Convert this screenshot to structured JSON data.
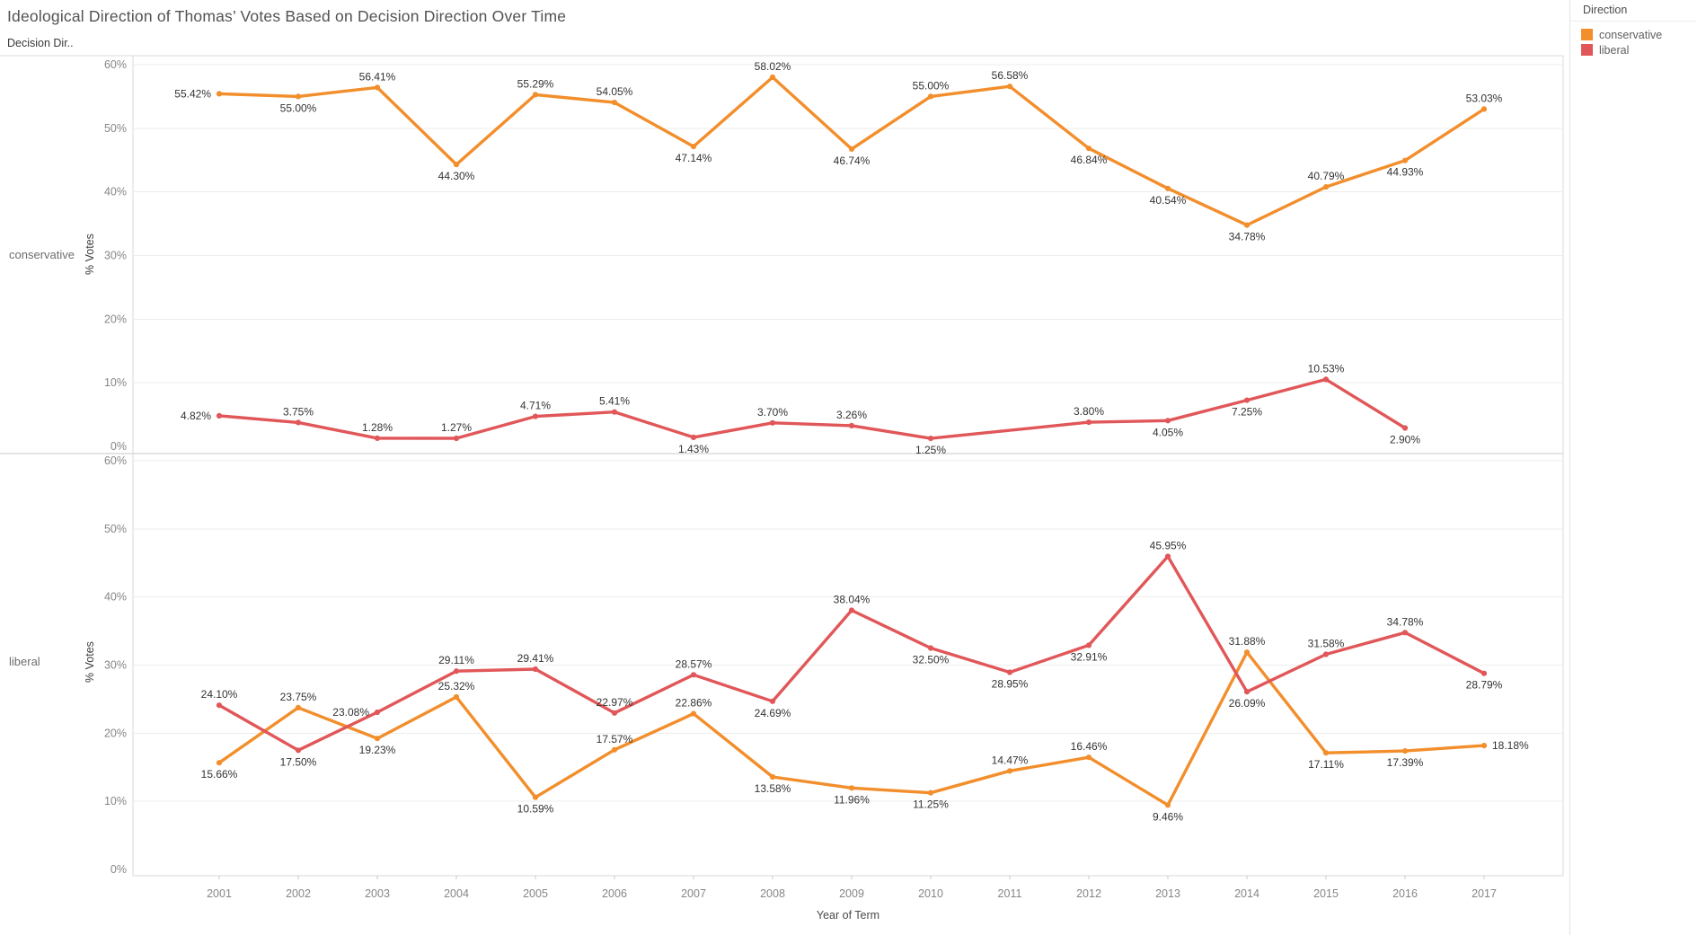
{
  "title": "Ideological Direction of Thomas’ Votes Based on Decision Direction Over Time",
  "row_field_header": "Decision Dir..",
  "legend": {
    "title": "Direction",
    "items": [
      {
        "label": "conservative",
        "color": "#F28E2B"
      },
      {
        "label": "liberal",
        "color": "#E15759"
      }
    ]
  },
  "axes": {
    "x_title": "Year of Term",
    "y_title": "% Votes",
    "y_tick_values": [
      0,
      10,
      20,
      30,
      40,
      50,
      60
    ],
    "y_tick_labels": [
      "0%",
      "10%",
      "20%",
      "30%",
      "40%",
      "50%",
      "60%"
    ]
  },
  "chart_data": [
    {
      "type": "line",
      "row_label": "conservative",
      "x": [
        2001,
        2002,
        2003,
        2004,
        2005,
        2006,
        2007,
        2008,
        2009,
        2010,
        2011,
        2012,
        2013,
        2014,
        2015,
        2016,
        2017
      ],
      "ylim": [
        0,
        60
      ],
      "grid": true,
      "series": [
        {
          "name": "conservative",
          "color": "#F28E2B",
          "points": [
            {
              "x": 2001,
              "y": 55.42,
              "label": "55.42%",
              "pos": "left"
            },
            {
              "x": 2002,
              "y": 55.0,
              "label": "55.00%",
              "pos": "below"
            },
            {
              "x": 2003,
              "y": 56.41,
              "label": "56.41%",
              "pos": "above"
            },
            {
              "x": 2004,
              "y": 44.3,
              "label": "44.30%",
              "pos": "below"
            },
            {
              "x": 2005,
              "y": 55.29,
              "label": "55.29%",
              "pos": "above"
            },
            {
              "x": 2006,
              "y": 54.05,
              "label": "54.05%",
              "pos": "above"
            },
            {
              "x": 2007,
              "y": 47.14,
              "label": "47.14%",
              "pos": "below"
            },
            {
              "x": 2008,
              "y": 58.02,
              "label": "58.02%",
              "pos": "above"
            },
            {
              "x": 2009,
              "y": 46.74,
              "label": "46.74%",
              "pos": "below"
            },
            {
              "x": 2010,
              "y": 55.0,
              "label": "55.00%",
              "pos": "above"
            },
            {
              "x": 2011,
              "y": 56.58,
              "label": "56.58%",
              "pos": "above"
            },
            {
              "x": 2012,
              "y": 46.84,
              "label": "46.84%",
              "pos": "below"
            },
            {
              "x": 2013,
              "y": 40.54,
              "label": "40.54%",
              "pos": "below"
            },
            {
              "x": 2014,
              "y": 34.78,
              "label": "34.78%",
              "pos": "below"
            },
            {
              "x": 2015,
              "y": 40.79,
              "label": "40.79%",
              "pos": "above"
            },
            {
              "x": 2016,
              "y": 44.93,
              "label": "44.93%",
              "pos": "below"
            },
            {
              "x": 2017,
              "y": 53.03,
              "label": "53.03%",
              "pos": "above"
            }
          ]
        },
        {
          "name": "liberal",
          "color": "#E15759",
          "points": [
            {
              "x": 2001,
              "y": 4.82,
              "label": "4.82%",
              "pos": "left"
            },
            {
              "x": 2002,
              "y": 3.75,
              "label": "3.75%",
              "pos": "above"
            },
            {
              "x": 2003,
              "y": 1.28,
              "label": "1.28%",
              "pos": "above"
            },
            {
              "x": 2004,
              "y": 1.27,
              "label": "1.27%",
              "pos": "above"
            },
            {
              "x": 2005,
              "y": 4.71,
              "label": "4.71%",
              "pos": "above"
            },
            {
              "x": 2006,
              "y": 5.41,
              "label": "5.41%",
              "pos": "above"
            },
            {
              "x": 2007,
              "y": 1.43,
              "label": "1.43%",
              "pos": "below"
            },
            {
              "x": 2008,
              "y": 3.7,
              "label": "3.70%",
              "pos": "above"
            },
            {
              "x": 2009,
              "y": 3.26,
              "label": "3.26%",
              "pos": "above"
            },
            {
              "x": 2010,
              "y": 1.25,
              "label": "1.25%",
              "pos": "below"
            },
            {
              "x": 2012,
              "y": 3.8,
              "label": "3.80%",
              "pos": "above"
            },
            {
              "x": 2013,
              "y": 4.05,
              "label": "4.05%",
              "pos": "below"
            },
            {
              "x": 2014,
              "y": 7.25,
              "label": "7.25%",
              "pos": "below"
            },
            {
              "x": 2015,
              "y": 10.53,
              "label": "10.53%",
              "pos": "above"
            },
            {
              "x": 2016,
              "y": 2.9,
              "label": "2.90%",
              "pos": "below"
            }
          ]
        }
      ]
    },
    {
      "type": "line",
      "row_label": "liberal",
      "x": [
        2001,
        2002,
        2003,
        2004,
        2005,
        2006,
        2007,
        2008,
        2009,
        2010,
        2011,
        2012,
        2013,
        2014,
        2015,
        2016,
        2017
      ],
      "ylim": [
        0,
        60
      ],
      "grid": true,
      "series": [
        {
          "name": "conservative",
          "color": "#F28E2B",
          "points": [
            {
              "x": 2001,
              "y": 15.66,
              "label": "15.66%",
              "pos": "below"
            },
            {
              "x": 2002,
              "y": 23.75,
              "label": "23.75%",
              "pos": "above"
            },
            {
              "x": 2003,
              "y": 19.23,
              "label": "19.23%",
              "pos": "below"
            },
            {
              "x": 2004,
              "y": 25.32,
              "label": "25.32%",
              "pos": "above"
            },
            {
              "x": 2005,
              "y": 10.59,
              "label": "10.59%",
              "pos": "below"
            },
            {
              "x": 2006,
              "y": 17.57,
              "label": "17.57%",
              "pos": "above"
            },
            {
              "x": 2007,
              "y": 22.86,
              "label": "22.86%",
              "pos": "above"
            },
            {
              "x": 2008,
              "y": 13.58,
              "label": "13.58%",
              "pos": "below"
            },
            {
              "x": 2009,
              "y": 11.96,
              "label": "11.96%",
              "pos": "below"
            },
            {
              "x": 2010,
              "y": 11.25,
              "label": "11.25%",
              "pos": "below"
            },
            {
              "x": 2011,
              "y": 14.47,
              "label": "14.47%",
              "pos": "above"
            },
            {
              "x": 2012,
              "y": 16.46,
              "label": "16.46%",
              "pos": "above"
            },
            {
              "x": 2013,
              "y": 9.46,
              "label": "9.46%",
              "pos": "below"
            },
            {
              "x": 2014,
              "y": 31.88,
              "label": "31.88%",
              "pos": "above"
            },
            {
              "x": 2015,
              "y": 17.11,
              "label": "17.11%",
              "pos": "below"
            },
            {
              "x": 2016,
              "y": 17.39,
              "label": "17.39%",
              "pos": "below"
            },
            {
              "x": 2017,
              "y": 18.18,
              "label": "18.18%",
              "pos": "right"
            }
          ]
        },
        {
          "name": "liberal",
          "color": "#E15759",
          "points": [
            {
              "x": 2001,
              "y": 24.1,
              "label": "24.10%",
              "pos": "above"
            },
            {
              "x": 2002,
              "y": 17.5,
              "label": "17.50%",
              "pos": "below"
            },
            {
              "x": 2003,
              "y": 23.08,
              "label": "23.08%",
              "pos": "left"
            },
            {
              "x": 2004,
              "y": 29.11,
              "label": "29.11%",
              "pos": "above"
            },
            {
              "x": 2005,
              "y": 29.41,
              "label": "29.41%",
              "pos": "above"
            },
            {
              "x": 2006,
              "y": 22.97,
              "label": "22.97%",
              "pos": "above"
            },
            {
              "x": 2007,
              "y": 28.57,
              "label": "28.57%",
              "pos": "above"
            },
            {
              "x": 2008,
              "y": 24.69,
              "label": "24.69%",
              "pos": "below"
            },
            {
              "x": 2009,
              "y": 38.04,
              "label": "38.04%",
              "pos": "above"
            },
            {
              "x": 2010,
              "y": 32.5,
              "label": "32.50%",
              "pos": "below"
            },
            {
              "x": 2011,
              "y": 28.95,
              "label": "28.95%",
              "pos": "below"
            },
            {
              "x": 2012,
              "y": 32.91,
              "label": "32.91%",
              "pos": "below"
            },
            {
              "x": 2013,
              "y": 45.95,
              "label": "45.95%",
              "pos": "above"
            },
            {
              "x": 2014,
              "y": 26.09,
              "label": "26.09%",
              "pos": "below"
            },
            {
              "x": 2015,
              "y": 31.58,
              "label": "31.58%",
              "pos": "above"
            },
            {
              "x": 2016,
              "y": 34.78,
              "label": "34.78%",
              "pos": "above"
            },
            {
              "x": 2017,
              "y": 28.79,
              "label": "28.79%",
              "pos": "below"
            }
          ]
        }
      ]
    }
  ]
}
